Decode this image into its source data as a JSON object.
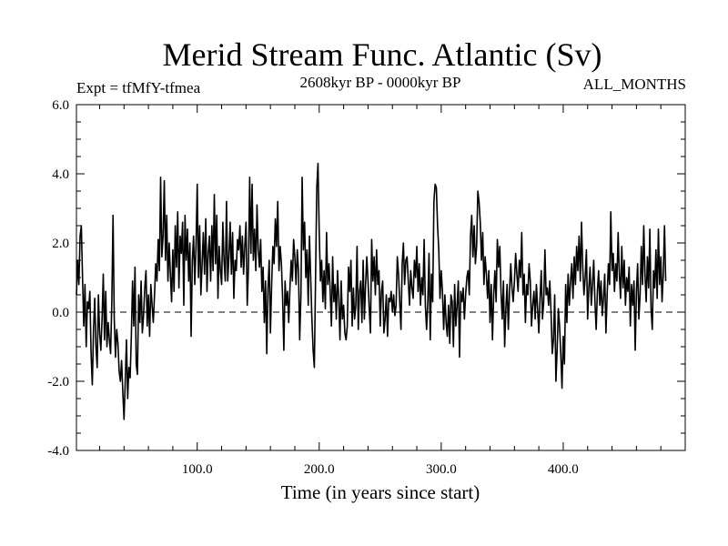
{
  "chart_data": {
    "type": "line",
    "title": "Merid Stream Func. Atlantic (Sv)",
    "subtitle_left": "Expt = tfMfY-tfmea",
    "subtitle_center": "2608kyr BP - 0000kyr BP",
    "subtitle_right": "ALL_MONTHS",
    "xlabel": "Time (in years since start)",
    "ylabel": "",
    "xlim": [
      1,
      500
    ],
    "ylim": [
      -4.0,
      6.0
    ],
    "xticks": [
      100,
      200,
      300,
      400
    ],
    "xtick_labels": [
      "100.0",
      "200.0",
      "300.0",
      "400.0"
    ],
    "yticks": [
      -4,
      -2,
      0,
      2,
      4,
      6
    ],
    "ytick_labels": [
      "-4.0",
      "-2.0",
      "0.0",
      "2.0",
      "4.0",
      "6.0"
    ],
    "reference_line": 0.0,
    "series": [
      {
        "name": "Merid Stream Func. Atlantic",
        "x_start": 1,
        "x_step": 1,
        "values": [
          0.5,
          1.5,
          0.8,
          2.2,
          2.5,
          1.0,
          -0.4,
          0.8,
          -1.0,
          0.3,
          0.1,
          0.6,
          -1.2,
          -2.1,
          -0.5,
          0.4,
          -1.0,
          -1.6,
          0.5,
          -0.6,
          -1.1,
          -0.2,
          1.1,
          -0.8,
          0.6,
          -1.0,
          -0.3,
          -0.8,
          -1.2,
          0.3,
          2.8,
          -0.2,
          -1.3,
          -0.5,
          -0.9,
          -1.7,
          -2.0,
          -1.4,
          -2.3,
          -3.1,
          -2.0,
          -0.8,
          -2.5,
          -1.6,
          -1.9,
          -0.7,
          0.9,
          -0.4,
          1.3,
          -1.5,
          -1.8,
          0.5,
          -0.3,
          0.9,
          -0.6,
          -0.1,
          0.7,
          1.2,
          -0.4,
          0.5,
          -0.7,
          0.8,
          0.2,
          -0.3,
          0.5,
          1.4,
          0.9,
          2.1,
          1.2,
          3.9,
          1.6,
          2.2,
          3.8,
          1.5,
          2.8,
          0.9,
          2.0,
          1.1,
          0.3,
          1.8,
          0.6,
          2.5,
          1.3,
          2.9,
          0.7,
          2.2,
          1.7,
          2.6,
          0.2,
          2.8,
          1.5,
          2.4,
          0.9,
          2.0,
          -0.7,
          1.5,
          2.2,
          0.8,
          1.9,
          3.7,
          1.0,
          2.5,
          0.5,
          1.4,
          2.3,
          1.1,
          2.7,
          0.6,
          1.7,
          2.2,
          0.9,
          2.5,
          1.2,
          3.4,
          1.4,
          2.8,
          0.4,
          1.9,
          1.2,
          0.8,
          2.6,
          1.5,
          0.9,
          3.2,
          0.9,
          1.6,
          2.6,
          1.1,
          2.3,
          0.4,
          1.5,
          1.2,
          2.1,
          1.8,
          2.5,
          1.3,
          2.2,
          1.1,
          1.9,
          2.6,
          0.2,
          1.3,
          3.9,
          1.7,
          3.7,
          1.5,
          2.4,
          1.2,
          3.1,
          1.8,
          1.3,
          2.1,
          0.6,
          1.3,
          -0.3,
          0.9,
          -1.2,
          0.7,
          1.5,
          -0.6,
          0.8,
          1.9,
          1.4,
          2.7,
          1.9,
          3.2,
          1.2,
          1.9,
          1.4,
          0.4,
          -1.1,
          0.9,
          0.2,
          0.6,
          -0.3,
          0.7,
          1.5,
          0.9,
          2.1,
          1.6,
          0.8,
          1.8,
          1.2,
          -0.8,
          0.5,
          3.9,
          1.8,
          2.6,
          1.0,
          1.8,
          0.2,
          2.2,
          1.0,
          -0.2,
          -1.1,
          -1.6,
          1.0,
          3.6,
          4.3,
          2.3,
          0.9,
          1.5,
          0.3,
          1.2,
          0.1,
          2.3,
          0.8,
          1.4,
          0.6,
          -0.4,
          1.6,
          0.3,
          0.8,
          -0.2,
          1.2,
          0.4,
          -0.8,
          0.9,
          -0.2,
          0.2,
          -0.6,
          -0.8,
          -0.4,
          1.3,
          0.6,
          1.5,
          -0.4,
          0.7,
          -0.2,
          0.2,
          1.9,
          -0.5,
          0.6,
          0.9,
          -0.3,
          1.5,
          -0.2,
          0.8,
          1.6,
          0.9,
          0.1,
          -0.6,
          2.1,
          0.9,
          1.6,
          0.5,
          1.8,
          0.8,
          1.2,
          -0.4,
          0.6,
          0.9,
          -0.6,
          -0.2,
          0.5,
          -0.7,
          0.4,
          0.3,
          0.6,
          0.0,
          0.5,
          -0.1,
          0.2,
          1.6,
          1.1,
          0.3,
          -0.5,
          1.4,
          2.0,
          0.8,
          1.5,
          1.6,
          0.9,
          0.2,
          1.2,
          0.7,
          0.4,
          1.5,
          1.0,
          1.9,
          0.6,
          1.4,
          0.2,
          1.0,
          0.5,
          2.1,
          0.2,
          -0.5,
          0.3,
          1.7,
          -0.8,
          1.1,
          0.3,
          3.2,
          3.7,
          3.6,
          2.5,
          1.8,
          0.4,
          1.2,
          0.6,
          -0.5,
          0.5,
          -0.3,
          -0.7,
          0.2,
          -0.9,
          0.5,
          0.3,
          -1.0,
          0.8,
          -0.4,
          0.2,
          0.9,
          -1.3,
          0.6,
          0.3,
          0.7,
          -0.2,
          0.5,
          1.0,
          1.2,
          0.5,
          2.2,
          2.8,
          1.6,
          2.5,
          1.4,
          1.9,
          3.5,
          3.2,
          2.6,
          1.5,
          2.3,
          0.8,
          1.6,
          1.1,
          0.4,
          1.2,
          -0.3,
          0.8,
          -0.8,
          0.5,
          1.2,
          0.3,
          2.1,
          1.3,
          1.9,
          0.6,
          -0.2,
          0.9,
          -1.0,
          0.1,
          0.8,
          -0.5,
          0.6,
          1.4,
          0.7,
          0.3,
          0.9,
          1.7,
          1.1,
          0.6,
          1.5,
          1.0,
          2.3,
          0.5,
          1.1,
          -0.3,
          0.8,
          0.5,
          1.4,
          0.9,
          -0.4,
          0.2,
          0.6,
          -0.2,
          0.8,
          0.1,
          -0.6,
          0.4,
          1.2,
          -0.2,
          0.3,
          1.8,
          0.5,
          0.7,
          0.2,
          0.9,
          0.0,
          -1.2,
          -0.8,
          0.5,
          -2.0,
          -1.1,
          0.1,
          -0.4,
          -1.2,
          -2.2,
          -0.7,
          -1.5,
          0.8,
          -0.3,
          1.1,
          0.2,
          0.9,
          1.4,
          0.4,
          1.6,
          0.8,
          1.9,
          1.2,
          2.2,
          0.9,
          2.6,
          1.3,
          0.5,
          1.0,
          1.8,
          -0.2,
          0.7,
          1.3,
          0.2,
          0.8,
          1.5,
          0.3,
          -0.5,
          0.6,
          1.2,
          0.2,
          0.9,
          -0.1,
          0.4,
          1.1,
          -0.6,
          0.5,
          1.4,
          0.8,
          2.9,
          1.2,
          1.7,
          0.6,
          1.4,
          0.9,
          2.3,
          1.1,
          0.4,
          1.9,
          0.7,
          1.5,
          0.2,
          1.0,
          0.6,
          1.3,
          -0.4,
          0.8,
          0.2,
          0.9,
          -1.1,
          0.6,
          1.4,
          -0.2,
          0.5,
          1.9,
          0.8,
          2.5,
          1.1,
          0.3,
          1.6,
          0.7,
          2.4,
          0.1,
          -0.5,
          1.2,
          0.7,
          1.8,
          0.4,
          2.4,
          0.8,
          1.6,
          0.3,
          1.1,
          2.5,
          0.9
        ]
      }
    ]
  }
}
